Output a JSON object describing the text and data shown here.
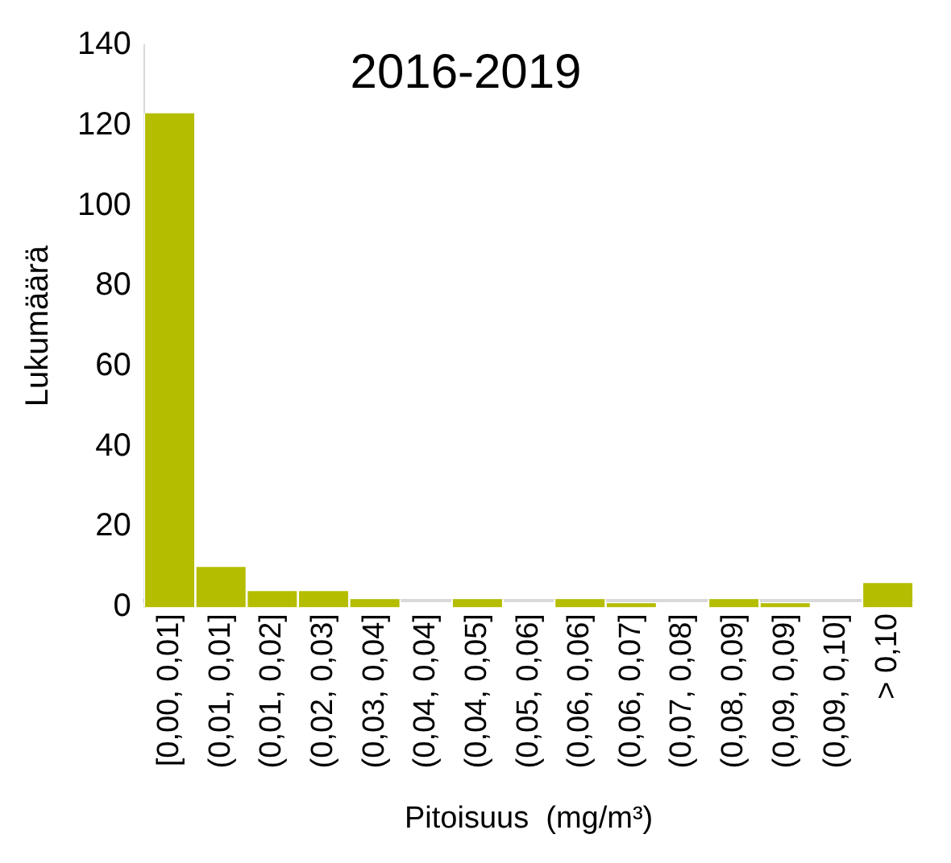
{
  "chart_data": {
    "type": "bar",
    "title": "2016-2019",
    "xlabel": "Pitoisuus  (mg/m³)",
    "ylabel": "Lukumäärä",
    "categories": [
      "[0,00, 0,01]",
      "(0,01, 0,01]",
      "(0,01, 0,02]",
      "(0,02, 0,03]",
      "(0,03, 0,04]",
      "(0,04, 0,04]",
      "(0,04, 0,05]",
      "(0,05, 0,06]",
      "(0,06, 0,06]",
      "(0,06, 0,07]",
      "(0,07, 0,08]",
      "(0,08, 0,09]",
      "(0,09, 0,09]",
      "(0,09, 0,10]",
      "> 0,10"
    ],
    "values": [
      123,
      10,
      4,
      4,
      2,
      0,
      2,
      0,
      2,
      1,
      0,
      2,
      1,
      0,
      6
    ],
    "color": "#b5bd00",
    "ylim": [
      0,
      140
    ],
    "yticks": [
      0,
      20,
      40,
      60,
      80,
      100,
      120,
      140
    ],
    "grid": false,
    "legend": false
  }
}
